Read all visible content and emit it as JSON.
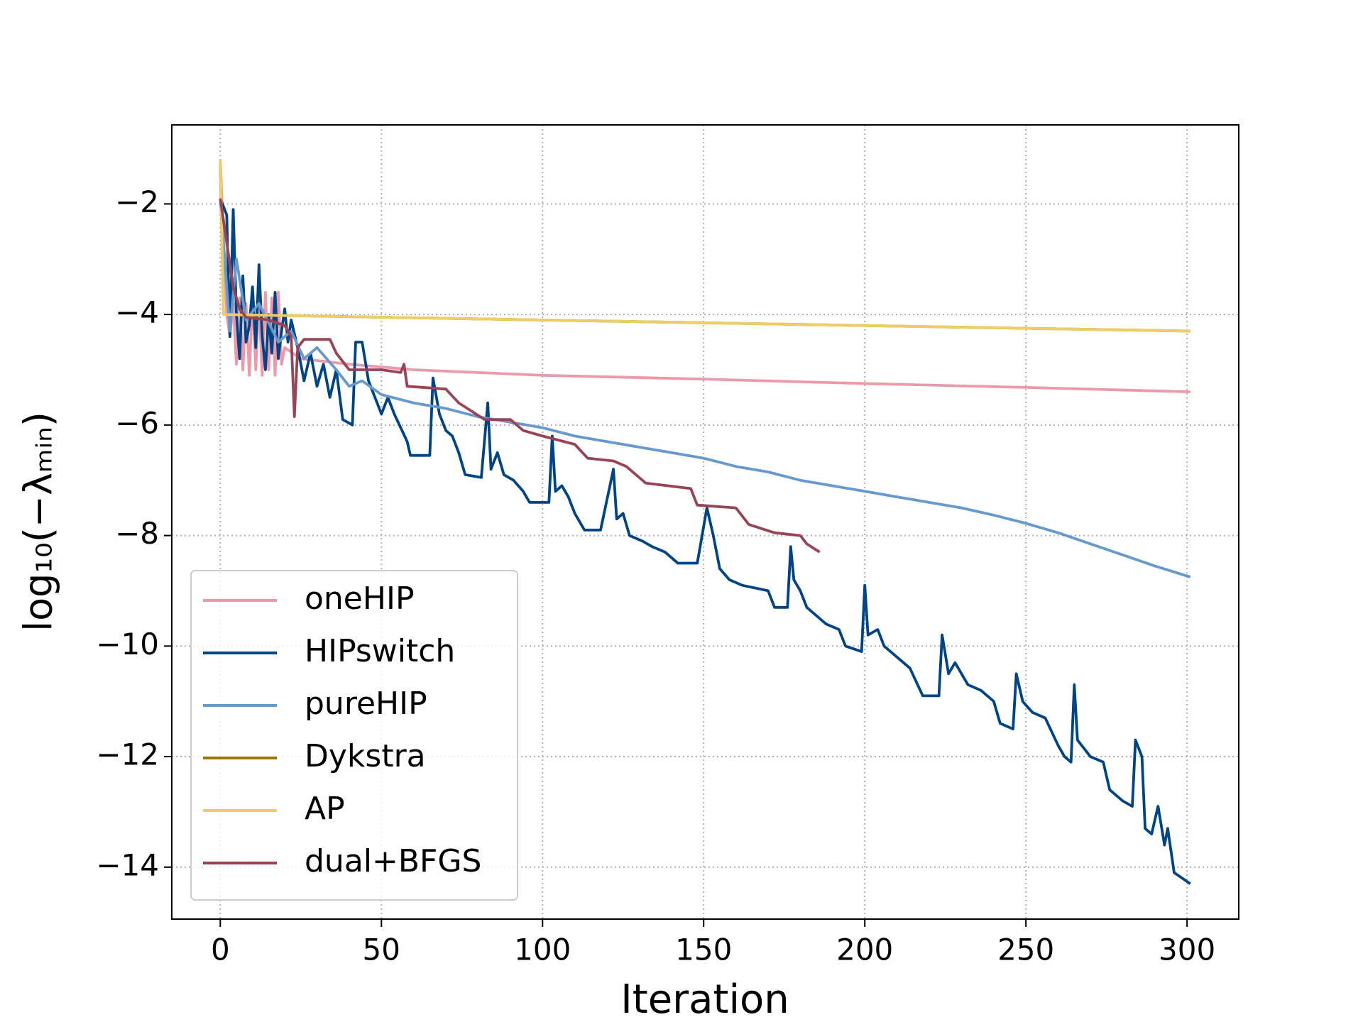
{
  "chart_data": {
    "type": "line",
    "xlabel": "Iteration",
    "ylabel": "log₁₀(−λₘᵢₙ)",
    "xlim": [
      -15.05,
      316.05
    ],
    "ylim": [
      -14.94,
      -0.57
    ],
    "xticks": [
      0,
      50,
      100,
      150,
      200,
      250,
      300
    ],
    "yticks": [
      {
        "value": -14,
        "label": "−14"
      },
      {
        "value": -12,
        "label": "−12"
      },
      {
        "value": -10,
        "label": "−10"
      },
      {
        "value": -8,
        "label": "−8"
      },
      {
        "value": -6,
        "label": "−6"
      },
      {
        "value": -4,
        "label": "−4"
      },
      {
        "value": -2,
        "label": "−2"
      }
    ],
    "grid": true,
    "legend": "lower left",
    "series": [
      {
        "name": "oneHIP",
        "color": "#ee99aa",
        "x": [
          0,
          2,
          3,
          4,
          5,
          6,
          7,
          8,
          9,
          10,
          11,
          12,
          13,
          14,
          15,
          16,
          17,
          18,
          19,
          20,
          25,
          40,
          60,
          100,
          150,
          200,
          250,
          301
        ],
        "values": [
          -1.2,
          -4.0,
          -4.4,
          -3.8,
          -4.9,
          -3.7,
          -5.0,
          -3.8,
          -5.1,
          -3.7,
          -5.0,
          -3.7,
          -5.1,
          -3.6,
          -5.0,
          -3.7,
          -5.1,
          -3.6,
          -4.9,
          -4.6,
          -4.8,
          -4.9,
          -5.0,
          -5.1,
          -5.17,
          -5.25,
          -5.32,
          -5.4
        ]
      },
      {
        "name": "HIPswitch",
        "color": "#004488",
        "x": [
          0,
          2,
          3,
          4,
          5,
          6,
          7,
          8,
          9,
          10,
          11,
          12,
          13,
          14,
          15,
          16,
          17,
          18,
          19,
          20,
          21,
          22,
          24,
          26,
          28,
          30,
          32,
          34,
          36,
          38,
          41,
          42,
          44,
          46,
          48,
          50,
          52,
          54,
          58,
          59,
          65,
          66,
          68,
          70,
          72,
          74,
          76,
          81,
          83,
          84,
          86,
          88,
          91,
          94,
          96,
          102,
          103,
          104,
          106,
          108,
          110,
          113,
          118,
          122,
          123,
          125,
          127,
          131,
          134,
          138,
          142,
          148,
          151,
          153,
          155,
          158,
          162,
          170,
          172,
          176,
          177,
          178,
          180,
          182,
          186,
          188,
          192,
          194,
          199,
          200,
          201,
          204,
          206,
          210,
          214,
          218,
          223,
          224,
          226,
          228,
          232,
          236,
          240,
          242,
          246,
          247,
          249,
          252,
          256,
          260,
          262,
          264,
          265,
          266,
          270,
          274,
          276,
          280,
          283,
          284,
          286,
          287,
          289,
          291,
          293,
          294,
          296,
          301
        ],
        "values": [
          -1.9,
          -2.2,
          -4.4,
          -2.1,
          -4.0,
          -4.8,
          -3.3,
          -4.5,
          -4.2,
          -3.5,
          -4.6,
          -3.1,
          -4.4,
          -5.0,
          -4.0,
          -4.7,
          -3.6,
          -4.8,
          -4.3,
          -3.9,
          -4.5,
          -4.1,
          -4.6,
          -5.2,
          -4.7,
          -5.3,
          -4.9,
          -5.5,
          -5.0,
          -5.9,
          -6.0,
          -4.5,
          -4.5,
          -5.2,
          -5.5,
          -5.8,
          -5.5,
          -5.8,
          -6.3,
          -6.55,
          -6.55,
          -5.15,
          -5.8,
          -6.1,
          -6.2,
          -6.5,
          -6.9,
          -6.95,
          -5.6,
          -6.8,
          -6.5,
          -6.9,
          -7.0,
          -7.2,
          -7.4,
          -7.4,
          -6.2,
          -7.2,
          -7.1,
          -7.3,
          -7.6,
          -7.9,
          -7.9,
          -6.8,
          -7.7,
          -7.6,
          -8.0,
          -8.1,
          -8.2,
          -8.3,
          -8.5,
          -8.5,
          -7.5,
          -8.0,
          -8.6,
          -8.8,
          -8.9,
          -9.0,
          -9.3,
          -9.3,
          -8.2,
          -8.8,
          -9.0,
          -9.3,
          -9.5,
          -9.6,
          -9.7,
          -10.0,
          -10.1,
          -8.9,
          -9.8,
          -9.7,
          -10.0,
          -10.2,
          -10.4,
          -10.9,
          -10.9,
          -9.8,
          -10.5,
          -10.3,
          -10.7,
          -10.8,
          -11.0,
          -11.4,
          -11.5,
          -10.5,
          -11.0,
          -11.2,
          -11.3,
          -11.8,
          -12.0,
          -12.1,
          -10.7,
          -11.7,
          -12.0,
          -12.1,
          -12.6,
          -12.8,
          -12.9,
          -11.7,
          -12.0,
          -13.3,
          -13.4,
          -12.9,
          -13.6,
          -13.3,
          -14.1,
          -14.3
        ]
      },
      {
        "name": "pureHIP",
        "color": "#6699cc",
        "x": [
          0,
          3,
          5,
          8,
          12,
          18,
          22,
          26,
          30,
          36,
          40,
          44,
          50,
          60,
          70,
          80,
          90,
          100,
          110,
          120,
          130,
          140,
          150,
          160,
          170,
          180,
          190,
          200,
          210,
          220,
          230,
          240,
          250,
          260,
          270,
          280,
          290,
          301
        ],
        "values": [
          -1.9,
          -4.3,
          -3.0,
          -4.1,
          -3.8,
          -4.5,
          -4.3,
          -4.8,
          -4.6,
          -5.0,
          -5.3,
          -5.2,
          -5.45,
          -5.6,
          -5.7,
          -5.85,
          -5.95,
          -6.05,
          -6.2,
          -6.3,
          -6.4,
          -6.5,
          -6.6,
          -6.75,
          -6.85,
          -7.0,
          -7.1,
          -7.2,
          -7.3,
          -7.4,
          -7.5,
          -7.63,
          -7.78,
          -7.95,
          -8.15,
          -8.35,
          -8.55,
          -8.75
        ]
      },
      {
        "name": "Dykstra",
        "color": "#997700",
        "x": [
          0,
          1,
          50,
          100,
          150,
          200,
          250,
          301
        ],
        "values": [
          -1.3,
          -4.0,
          -4.05,
          -4.1,
          -4.15,
          -4.2,
          -4.25,
          -4.3
        ]
      },
      {
        "name": "AP",
        "color": "#eecc66",
        "x": [
          0,
          1,
          50,
          100,
          150,
          200,
          250,
          301
        ],
        "values": [
          -1.2,
          -4.0,
          -4.05,
          -4.1,
          -4.15,
          -4.2,
          -4.25,
          -4.3
        ]
      },
      {
        "name": "dual+BFGS",
        "color": "#994455",
        "x": [
          0,
          2,
          4,
          6,
          8,
          15,
          20,
          22,
          23,
          24,
          26,
          34,
          36,
          40,
          50,
          56,
          57,
          58,
          70,
          74,
          82,
          90,
          94,
          100,
          110,
          114,
          122,
          126,
          132,
          146,
          148,
          160,
          164,
          172,
          180,
          182,
          186
        ],
        "values": [
          -1.9,
          -2.7,
          -3.5,
          -3.9,
          -4.05,
          -4.1,
          -4.2,
          -4.4,
          -5.85,
          -4.6,
          -4.45,
          -4.45,
          -4.7,
          -5.0,
          -5.0,
          -5.05,
          -4.9,
          -5.3,
          -5.35,
          -5.6,
          -5.9,
          -5.9,
          -6.1,
          -6.2,
          -6.35,
          -6.6,
          -6.65,
          -6.75,
          -7.05,
          -7.15,
          -7.45,
          -7.5,
          -7.8,
          -7.95,
          -8.0,
          -8.15,
          -8.3
        ]
      }
    ]
  }
}
